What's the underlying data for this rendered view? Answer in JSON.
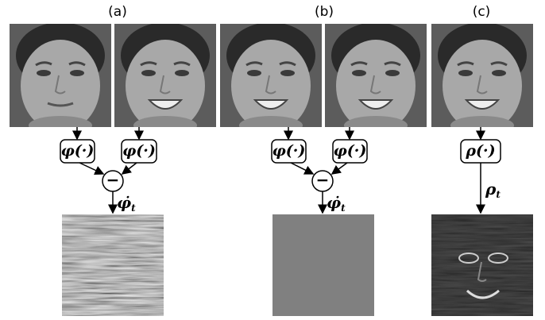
{
  "panels": [
    {
      "label": "(a)",
      "operators": [
        "φ(·)",
        "φ(·)"
      ],
      "combine": "−",
      "output": {
        "symbol": "φ̇",
        "subscript": "t"
      }
    },
    {
      "label": "(b)",
      "operators": [
        "φ(·)",
        "φ(·)"
      ],
      "combine": "−",
      "output": {
        "symbol": "φ̇",
        "subscript": "t"
      }
    },
    {
      "label": "(c)",
      "operators": [
        "ρ(·)"
      ],
      "output": {
        "symbol": "ρ",
        "subscript": "t"
      }
    }
  ]
}
